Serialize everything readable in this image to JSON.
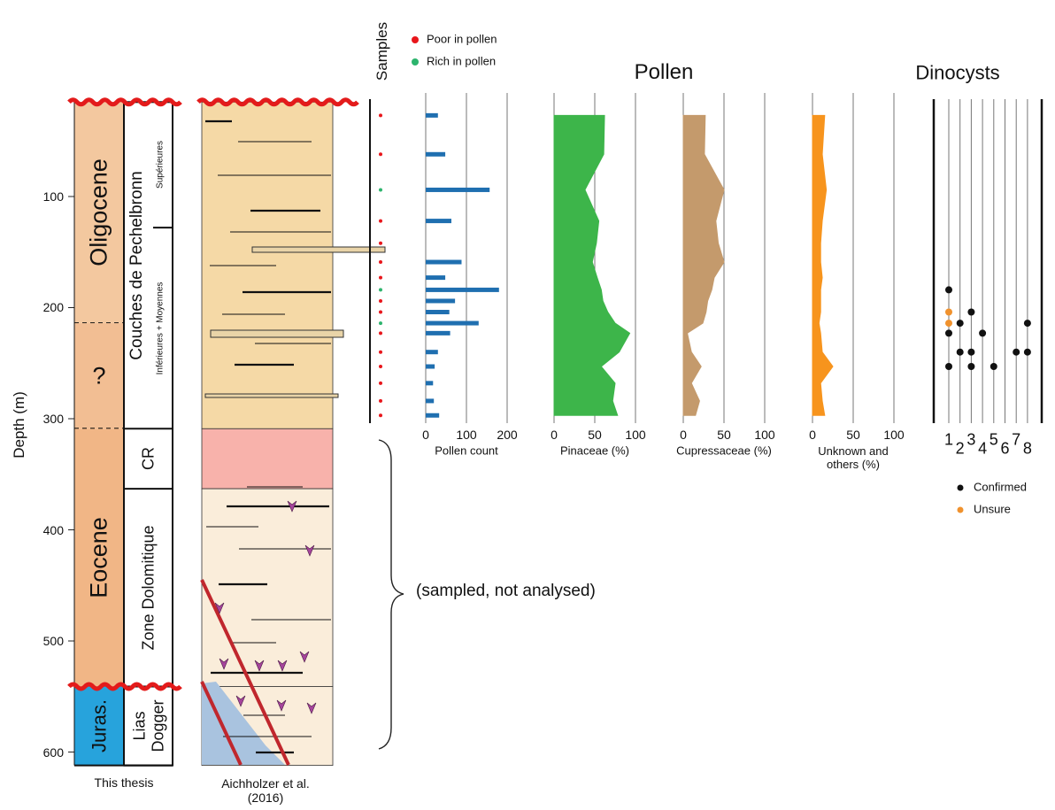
{
  "chart_data": {
    "type": "strat",
    "ylabel": "Depth (m)",
    "ylim": [
      15,
      612
    ],
    "yticks": [
      100,
      200,
      300,
      400,
      500,
      600
    ],
    "top_contact": "unconformity",
    "units": [
      {
        "name": "Oligocene",
        "top": 15,
        "base_depth": 214,
        "color": "#f3c89f",
        "base": "dashed"
      },
      {
        "name": "?",
        "top": 214,
        "base_depth": 309,
        "color": "#f2be93",
        "base": "dashed"
      },
      {
        "name": "Eocene",
        "top": 309,
        "base_depth": 541,
        "color": "#f1b686",
        "base": "unconformity"
      },
      {
        "name": "Juras.",
        "top": 541,
        "base_depth": 612,
        "color": "#27a3dc",
        "base": "solid"
      }
    ],
    "formations": [
      {
        "name": "Couches de Pechelbronn",
        "top": 15,
        "base_depth": 309,
        "litho_color": "#f5d9a6"
      },
      {
        "name": "CR",
        "top": 309,
        "base_depth": 363,
        "litho_color": "#f8b2ab"
      },
      {
        "name": "Zone Dolomitique",
        "top": 363,
        "base_depth": 541,
        "litho_color": "#faedda"
      },
      {
        "name": "Lias Dogger",
        "top": 541,
        "base_depth": 612,
        "litho_color": "#faedda"
      }
    ],
    "subunits": [
      {
        "name": "Supérieures",
        "top": 15,
        "base_depth": 128
      },
      {
        "name": "Inférieures + Moyennes",
        "top": 128,
        "base_depth": 309
      }
    ],
    "column_labels": [
      "This thesis",
      "Aichholzer et al. (2016)"
    ],
    "annotation": "(sampled, not analysed)",
    "samples": {
      "title": "Samples",
      "legend": [
        {
          "name": "Poor in pollen",
          "color": "#e8161b"
        },
        {
          "name": "Rich in pollen",
          "color": "#2db46d"
        }
      ],
      "depth": [
        27,
        62,
        94,
        122,
        142,
        159,
        173,
        184,
        194,
        204,
        214,
        223,
        240,
        253,
        268,
        284,
        297
      ],
      "group": [
        0,
        0,
        1,
        0,
        0,
        0,
        0,
        1,
        0,
        0,
        1,
        0,
        0,
        0,
        0,
        0,
        0
      ]
    },
    "pollen_title": "Pollen",
    "pollen_panels": [
      {
        "type": "bar",
        "xlabel": "Pollen count",
        "color": "#1f6fb0",
        "xlim": [
          0,
          200
        ],
        "xticks": [
          0,
          100,
          200
        ],
        "values": [
          30,
          48,
          157,
          63,
          null,
          88,
          48,
          180,
          72,
          58,
          130,
          60,
          30,
          22,
          18,
          20,
          33
        ]
      },
      {
        "type": "area",
        "xlabel": "Pinaceae (%)",
        "color": "#3db54a",
        "xlim": [
          0,
          100
        ],
        "xticks": [
          0,
          50,
          100
        ],
        "values": [
          62,
          61,
          38,
          55,
          52,
          47,
          53,
          58,
          60,
          66,
          75,
          93,
          80,
          58,
          75,
          72,
          78
        ]
      },
      {
        "type": "area",
        "xlabel": "Cupressaceae (%)",
        "color": "#c49a6c",
        "xlim": [
          0,
          100
        ],
        "xticks": [
          0,
          50,
          100
        ],
        "values": [
          27,
          26,
          50,
          40,
          43,
          50,
          38,
          35,
          30,
          28,
          24,
          5,
          10,
          22,
          10,
          20,
          15
        ]
      },
      {
        "type": "area",
        "xlabel": "Unknown and others (%)",
        "color": "#f7941d",
        "xlim": [
          0,
          100
        ],
        "xticks": [
          0,
          50,
          100
        ],
        "values": [
          15,
          12,
          17,
          12,
          10,
          10,
          12,
          10,
          10,
          10,
          8,
          10,
          12,
          25,
          10,
          12,
          15
        ]
      }
    ],
    "dinocysts": {
      "title": "Dinocysts",
      "taxa": [
        "1",
        "2",
        "3",
        "4",
        "5",
        "6",
        "7",
        "8"
      ],
      "legend": [
        {
          "name": "Confirmed",
          "color": "#111111"
        },
        {
          "name": "Unsure",
          "color": "#f0922e"
        }
      ],
      "taxon": [
        0,
        0,
        0,
        0,
        0,
        1,
        1,
        2,
        2,
        2,
        3,
        4,
        6,
        7,
        7
      ],
      "depth": [
        184,
        204,
        214,
        223,
        253,
        214,
        240,
        204,
        240,
        253,
        223,
        253,
        240,
        214,
        240
      ],
      "group": [
        0,
        1,
        1,
        0,
        0,
        0,
        0,
        0,
        0,
        0,
        0,
        0,
        0,
        0,
        0
      ]
    }
  }
}
